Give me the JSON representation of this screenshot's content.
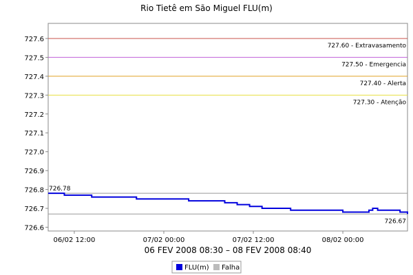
{
  "chart_data": {
    "type": "line",
    "title": "Rio Tietê em São Miguel FLU(m)",
    "xlabel": "06 FEV 2008 08:30 – 08 FEV 2008 08:40",
    "ylabel": "",
    "x_range": [
      "2008-02-06 08:30",
      "2008-02-08 08:40"
    ],
    "ylim": [
      726.58,
      727.68
    ],
    "grid": false,
    "legend_position": "bottom-center",
    "x_ticks": [
      {
        "t": "2008-02-06 12:00",
        "label": "06/02 12:00"
      },
      {
        "t": "2008-02-07 00:00",
        "label": "07/02 00:00"
      },
      {
        "t": "2008-02-07 12:00",
        "label": "07/02 12:00"
      },
      {
        "t": "2008-02-08 00:00",
        "label": "08/02 00:00"
      }
    ],
    "y_ticks": [
      {
        "v": 727.6,
        "label": "727.6"
      },
      {
        "v": 727.5,
        "label": "727.5"
      },
      {
        "v": 727.4,
        "label": "727.4"
      },
      {
        "v": 727.3,
        "label": "727.3"
      },
      {
        "v": 727.2,
        "label": "727.2"
      },
      {
        "v": 727.1,
        "label": "727.1"
      },
      {
        "v": 727.0,
        "label": "727.0"
      },
      {
        "v": 726.9,
        "label": "726.9"
      },
      {
        "v": 726.8,
        "label": "726.8"
      },
      {
        "v": 726.7,
        "label": "726.7"
      },
      {
        "v": 726.6,
        "label": "726.6"
      }
    ],
    "thresholds": [
      {
        "value": 727.6,
        "label": "727.60 - Extravasamento",
        "color": "#c8504a"
      },
      {
        "value": 727.5,
        "label": "727.50 - Emergencia",
        "color": "#c060d8"
      },
      {
        "value": 727.4,
        "label": "727.40 - Alerta",
        "color": "#e0a020"
      },
      {
        "value": 727.3,
        "label": "727.30 - Atenção",
        "color": "#e8e040"
      }
    ],
    "reference_lines": [
      {
        "value": 726.78,
        "label": "726.78",
        "color": "#999999",
        "label_side": "left"
      },
      {
        "value": 726.67,
        "label": "726.67",
        "color": "#999999",
        "label_side": "right"
      }
    ],
    "series": [
      {
        "name": "FLU(m)",
        "color": "#0000dd",
        "step": true,
        "x": [
          "2008-02-06 08:30",
          "2008-02-06 10:40",
          "2008-02-06 14:20",
          "2008-02-06 20:20",
          "2008-02-07 03:20",
          "2008-02-07 08:10",
          "2008-02-07 09:50",
          "2008-02-07 11:30",
          "2008-02-07 13:10",
          "2008-02-07 17:00",
          "2008-02-08 00:00",
          "2008-02-08 03:30",
          "2008-02-08 04:00",
          "2008-02-08 04:40",
          "2008-02-08 07:40",
          "2008-02-08 08:40"
        ],
        "y": [
          726.78,
          726.77,
          726.76,
          726.75,
          726.74,
          726.73,
          726.72,
          726.71,
          726.7,
          726.69,
          726.68,
          726.69,
          726.7,
          726.69,
          726.68,
          726.67
        ]
      }
    ],
    "legend": [
      {
        "label": "FLU(m)",
        "color": "#0000dd"
      },
      {
        "label": "Falha",
        "color": "#bbbbbb"
      }
    ]
  }
}
